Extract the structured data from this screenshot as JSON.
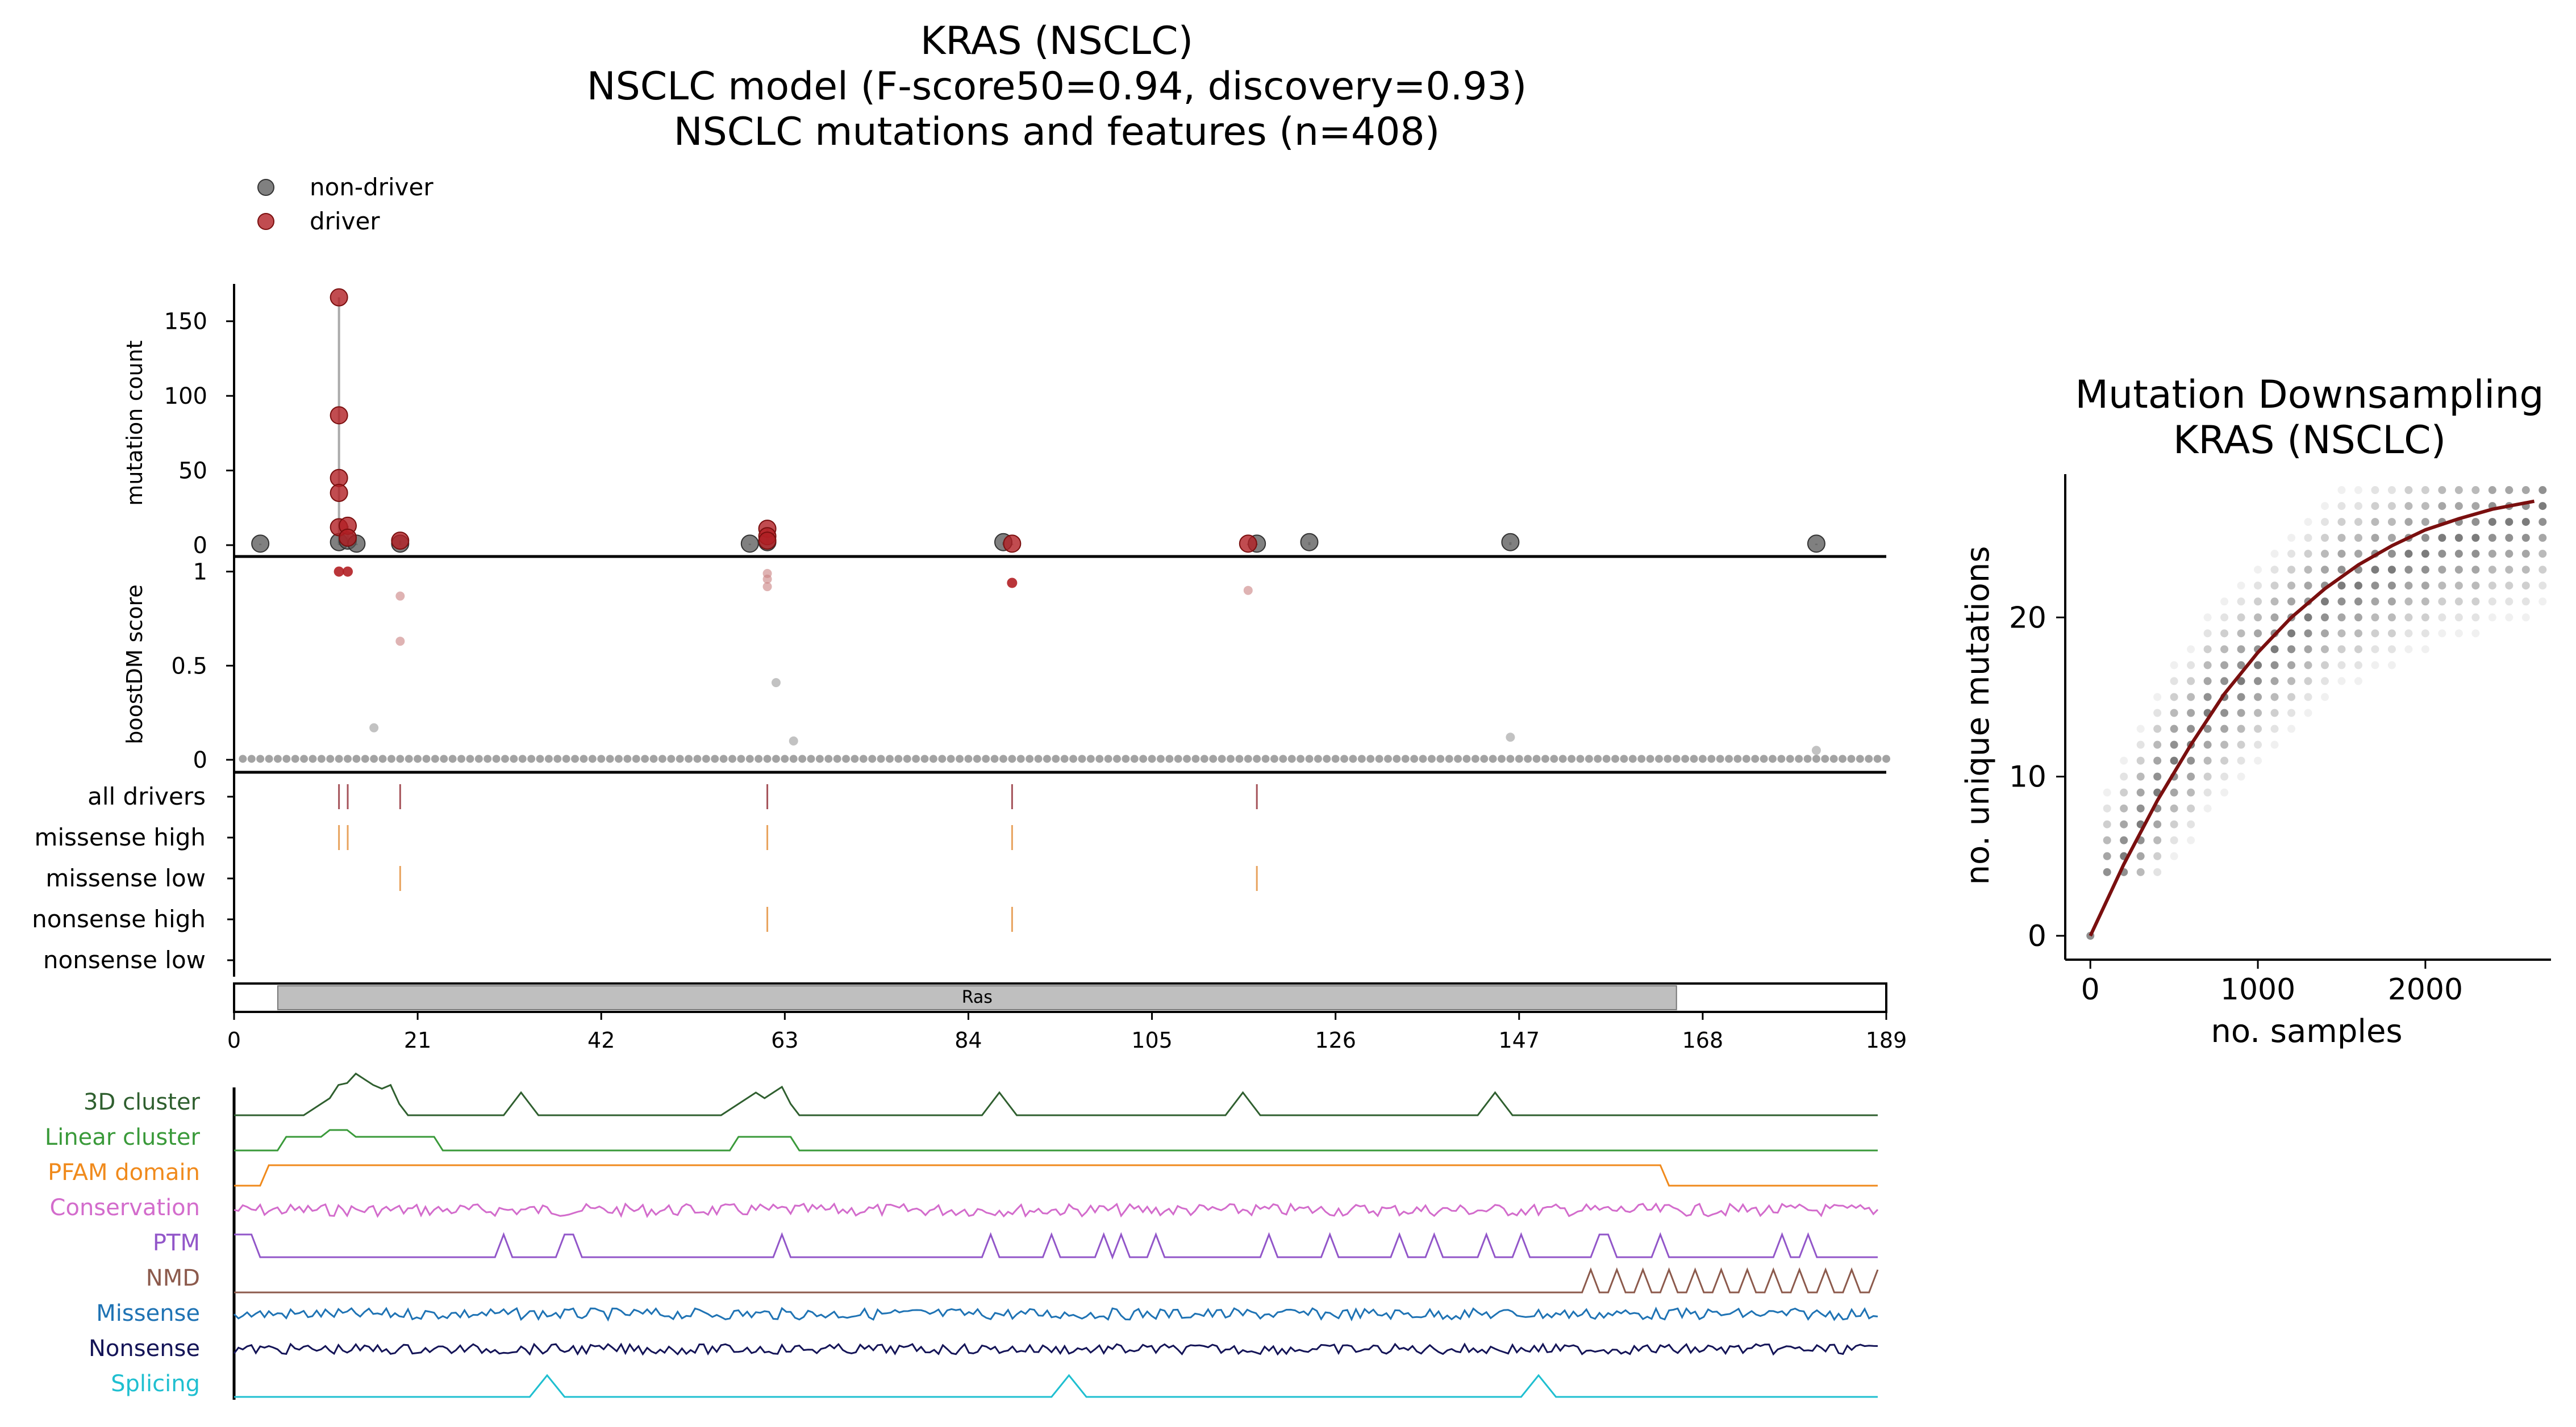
{
  "title": {
    "line1": "KRAS (NSCLC)",
    "line2": "NSCLC model (F-score50=0.94, discovery=0.93)",
    "line3": "NSCLC mutations and features (n=408)"
  },
  "legend": {
    "non_driver": "non-driver",
    "driver": "driver",
    "non_driver_color": "#555555",
    "driver_color": "#b21f24"
  },
  "colors": {
    "all_drivers": "#a5535a",
    "missense": "#e8a35e",
    "nonsense": "#e8a35e",
    "domain_fill": "#bfbfbf",
    "ds_curve": "#7a0f0f"
  },
  "chart_data": [
    {
      "type": "scatter",
      "name": "mutation-count-lollipop",
      "ylabel": "mutation count",
      "xlim": [
        0,
        189
      ],
      "ylim": [
        0,
        175
      ],
      "yticks": [
        0,
        50,
        100,
        150
      ],
      "non_driver": [
        {
          "pos": 3,
          "count": 1
        },
        {
          "pos": 12,
          "count": 2
        },
        {
          "pos": 13,
          "count": 3
        },
        {
          "pos": 14,
          "count": 1
        },
        {
          "pos": 19,
          "count": 1
        },
        {
          "pos": 59,
          "count": 1
        },
        {
          "pos": 61,
          "count": 2
        },
        {
          "pos": 88,
          "count": 2
        },
        {
          "pos": 117,
          "count": 1
        },
        {
          "pos": 123,
          "count": 2
        },
        {
          "pos": 146,
          "count": 2
        },
        {
          "pos": 181,
          "count": 1
        }
      ],
      "driver": [
        {
          "pos": 12,
          "count": 166
        },
        {
          "pos": 12,
          "count": 87
        },
        {
          "pos": 12,
          "count": 45
        },
        {
          "pos": 12,
          "count": 35
        },
        {
          "pos": 12,
          "count": 12
        },
        {
          "pos": 13,
          "count": 13
        },
        {
          "pos": 13,
          "count": 5
        },
        {
          "pos": 19,
          "count": 3
        },
        {
          "pos": 61,
          "count": 11
        },
        {
          "pos": 61,
          "count": 6
        },
        {
          "pos": 61,
          "count": 3
        },
        {
          "pos": 89,
          "count": 1
        },
        {
          "pos": 116,
          "count": 1
        }
      ]
    },
    {
      "type": "scatter",
      "name": "boostdm-score",
      "ylabel": "boostDM score",
      "xlim": [
        0,
        189
      ],
      "ylim": [
        0,
        1.05
      ],
      "yticks": [
        0,
        0.5,
        1
      ],
      "ytick_labels": [
        "0",
        "0.5",
        "1"
      ],
      "high_points": [
        {
          "pos": 12,
          "score": 1.0,
          "driver": true
        },
        {
          "pos": 13,
          "score": 1.0,
          "driver": true
        },
        {
          "pos": 19,
          "score": 0.87,
          "driver": false
        },
        {
          "pos": 19,
          "score": 0.63,
          "driver": false
        },
        {
          "pos": 61,
          "score": 0.99,
          "driver": false
        },
        {
          "pos": 61,
          "score": 0.96,
          "driver": false
        },
        {
          "pos": 61,
          "score": 0.92,
          "driver": false
        },
        {
          "pos": 62,
          "score": 0.41,
          "driver": false
        },
        {
          "pos": 89,
          "score": 0.94,
          "driver": true
        },
        {
          "pos": 116,
          "score": 0.9,
          "driver": false
        },
        {
          "pos": 16,
          "score": 0.17,
          "driver": false
        },
        {
          "pos": 64,
          "score": 0.1,
          "driver": false
        },
        {
          "pos": 146,
          "score": 0.12,
          "driver": false
        },
        {
          "pos": 181,
          "score": 0.05,
          "driver": false
        }
      ]
    },
    {
      "type": "table",
      "name": "driver-tracks",
      "rows": [
        "all drivers",
        "missense high",
        "missense low",
        "nonsense high",
        "nonsense low"
      ],
      "marks": {
        "all drivers": [
          12,
          13,
          19,
          61,
          89,
          117
        ],
        "missense high": [
          12,
          13,
          61,
          89
        ],
        "missense low": [
          19,
          117
        ],
        "nonsense high": [
          61,
          89
        ],
        "nonsense low": []
      }
    },
    {
      "type": "bar",
      "name": "protein-domain",
      "domains": [
        {
          "name": "Ras",
          "start": 5,
          "end": 165
        }
      ],
      "xticks": [
        0,
        21,
        42,
        63,
        84,
        105,
        126,
        147,
        168,
        189
      ]
    },
    {
      "type": "line",
      "name": "feature-tracks",
      "tracks": [
        {
          "label": "3D cluster",
          "color": "#2f5f2f"
        },
        {
          "label": "Linear cluster",
          "color": "#3a9a3a"
        },
        {
          "label": "PFAM domain",
          "color": "#f08a1c"
        },
        {
          "label": "Conservation",
          "color": "#d36ccc"
        },
        {
          "label": "PTM",
          "color": "#9256c9"
        },
        {
          "label": "NMD",
          "color": "#8c5a4c"
        },
        {
          "label": "Missense",
          "color": "#1f73b4"
        },
        {
          "label": "Nonsense",
          "color": "#141457"
        },
        {
          "label": "Splicing",
          "color": "#1fbfd0"
        }
      ]
    },
    {
      "type": "scatter",
      "name": "mutation-downsampling",
      "title_line1": "Mutation Downsampling",
      "title_line2": "KRAS (NSCLC)",
      "xlabel": "no. samples",
      "ylabel": "no. unique mutations",
      "xlim": [
        -150,
        2750
      ],
      "ylim": [
        -1.5,
        29
      ],
      "xticks": [
        0,
        1000,
        2000
      ],
      "yticks": [
        0,
        10,
        20
      ],
      "curve": [
        [
          0,
          0
        ],
        [
          200,
          4.5
        ],
        [
          400,
          8.5
        ],
        [
          600,
          12
        ],
        [
          800,
          15.2
        ],
        [
          1000,
          17.8
        ],
        [
          1200,
          20
        ],
        [
          1400,
          21.8
        ],
        [
          1600,
          23.3
        ],
        [
          1800,
          24.5
        ],
        [
          2000,
          25.5
        ],
        [
          2200,
          26.2
        ],
        [
          2400,
          26.8
        ],
        [
          2650,
          27.3
        ]
      ]
    }
  ]
}
